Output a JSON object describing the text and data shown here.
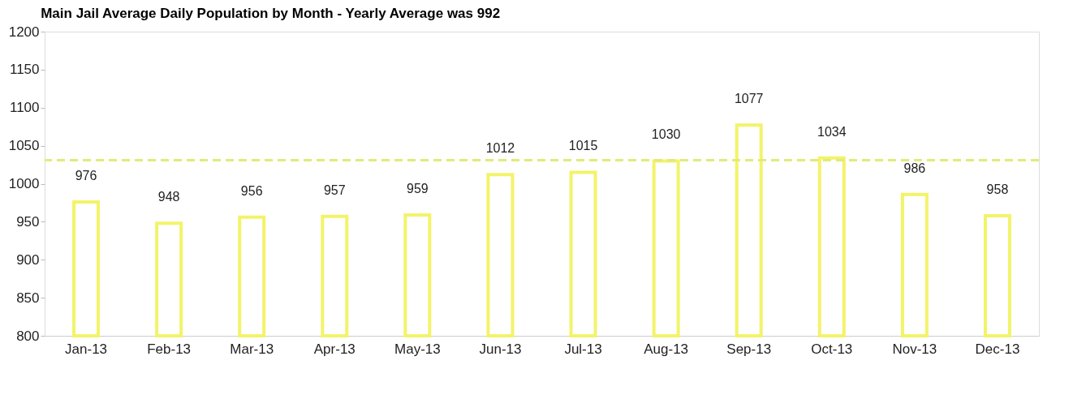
{
  "chart_data": {
    "type": "bar",
    "title": "Main Jail Average Daily Population by Month - Yearly Average was 992",
    "categories": [
      "Jan-13",
      "Feb-13",
      "Mar-13",
      "Apr-13",
      "May-13",
      "Jun-13",
      "Jul-13",
      "Aug-13",
      "Sep-13",
      "Oct-13",
      "Nov-13",
      "Dec-13"
    ],
    "values": [
      976,
      948,
      956,
      957,
      959,
      1012,
      1015,
      1030,
      1077,
      1034,
      986,
      958
    ],
    "color": "#f3f36a",
    "ylim": [
      800,
      1200
    ],
    "yticks": [
      800,
      850,
      900,
      950,
      1000,
      1050,
      1100,
      1150,
      1200
    ],
    "ref_lines": [
      {
        "axis": "y",
        "value": 1031,
        "color": "#e2ea7a",
        "line_style": "dashed"
      }
    ],
    "data_labels": true
  }
}
